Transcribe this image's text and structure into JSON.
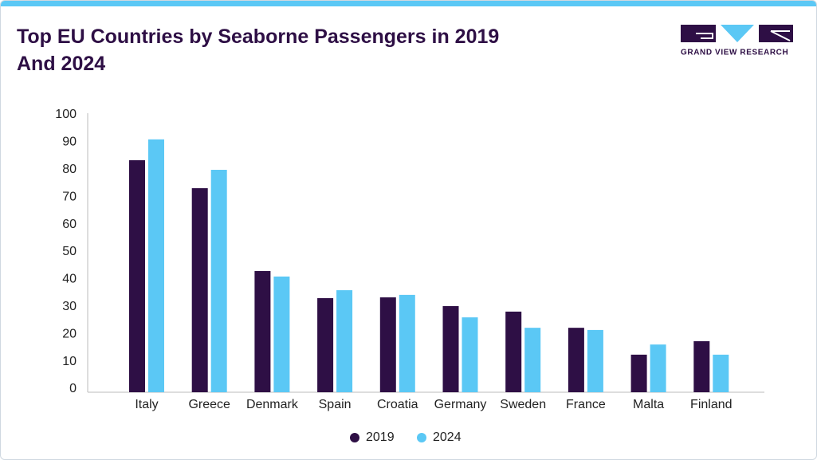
{
  "chart_data": {
    "type": "bar",
    "title": "Top EU Countries by Seaborne Passengers in 2019 And 2024",
    "logo_text": "GRAND VIEW RESEARCH",
    "categories": [
      "Italy",
      "Greece",
      "Denmark",
      "Spain",
      "Croatia",
      "Germany",
      "Sweden",
      "France",
      "Malta",
      "Finland"
    ],
    "series": [
      {
        "name": "2019",
        "color": "#2e0f45",
        "values": [
          84.6,
          74.4,
          44.2,
          34.3,
          34.6,
          31.4,
          29.4,
          23.5,
          13.7,
          18.6
        ]
      },
      {
        "name": "2024",
        "color": "#5bc8f5",
        "values": [
          92.2,
          81.1,
          42.2,
          37.2,
          35.5,
          27.3,
          23.5,
          22.7,
          17.4,
          13.7
        ]
      }
    ],
    "ylim": [
      0,
      100
    ],
    "yticks": [
      0,
      10,
      20,
      30,
      40,
      50,
      60,
      70,
      80,
      90,
      100
    ],
    "grid": false,
    "legend": "bottom"
  }
}
